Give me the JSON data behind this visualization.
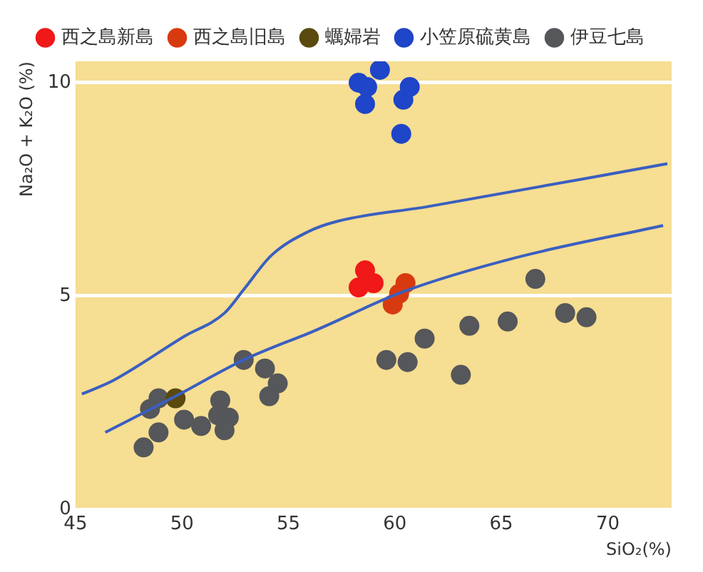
{
  "chart_data": {
    "type": "scatter",
    "xlabel": "SiO₂(%)",
    "ylabel": "Na₂O + K₂O (%)",
    "xlim": [
      45,
      73
    ],
    "ylim": [
      0,
      10.5
    ],
    "xticks": [
      45,
      50,
      55,
      60,
      65,
      70
    ],
    "yticks": [
      0,
      5,
      10
    ],
    "grid": "y",
    "legend": "top",
    "marker": "circle",
    "series": [
      {
        "name": "西之島新島",
        "color": "#f01818",
        "x": [
          58.6,
          58.3,
          59.0
        ],
        "values": [
          5.6,
          5.2,
          5.3
        ]
      },
      {
        "name": "西之島旧島",
        "color": "#d83a10",
        "x": [
          60.5,
          60.2,
          59.9
        ],
        "values": [
          5.3,
          5.05,
          4.8
        ]
      },
      {
        "name": "蠣婦岩",
        "color": "#5a4a10",
        "x": [
          49.7
        ],
        "values": [
          2.6
        ]
      },
      {
        "name": "小笠原硫黄島",
        "color": "#1f45c8",
        "x": [
          58.3,
          58.7,
          59.3,
          58.6,
          60.4,
          60.7,
          60.3
        ],
        "values": [
          10.0,
          9.9,
          10.3,
          9.5,
          9.6,
          9.9,
          8.8
        ]
      },
      {
        "name": "伊豆七島",
        "color": "#55575a",
        "x": [
          48.9,
          48.5,
          48.9,
          48.2,
          50.1,
          50.9,
          51.8,
          51.7,
          52.2,
          52.0,
          52.9,
          53.9,
          54.5,
          54.1,
          59.6,
          60.6,
          61.4,
          63.5,
          65.3,
          66.6,
          68.0,
          69.0,
          63.1
        ],
        "values": [
          2.6,
          2.35,
          1.8,
          1.45,
          2.1,
          1.95,
          2.55,
          2.2,
          2.15,
          1.85,
          3.5,
          3.3,
          2.95,
          2.65,
          3.5,
          3.45,
          4.0,
          4.3,
          4.4,
          5.4,
          4.6,
          4.5,
          3.15
        ]
      },
      {
        "type": "line",
        "color": "#3a5fc0",
        "marker": "none",
        "x": [
          45.3,
          46.7,
          50.1,
          52.0,
          52.9,
          54.2,
          55.9,
          57.3,
          61.6,
          72.8
        ],
        "values": [
          2.7,
          3.0,
          4.05,
          4.6,
          5.15,
          5.95,
          6.5,
          6.75,
          7.1,
          8.1
        ]
      },
      {
        "type": "line",
        "color": "#3a5fc0",
        "marker": "none",
        "x": [
          46.4,
          49.7,
          52.9,
          56.3,
          60.4,
          65.7,
          72.6
        ],
        "values": [
          1.8,
          2.65,
          3.5,
          4.2,
          5.1,
          5.9,
          6.65
        ]
      }
    ]
  }
}
